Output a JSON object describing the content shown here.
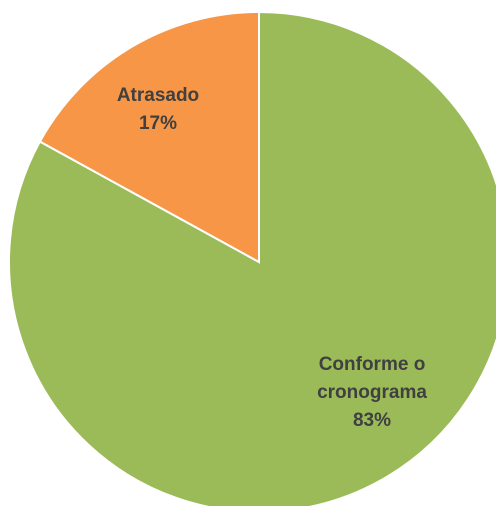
{
  "chart_data": {
    "type": "pie",
    "categories": [
      "Conforme o cronograma",
      "Atrasado"
    ],
    "values": [
      83,
      17
    ],
    "value_labels": [
      "83%",
      "17%"
    ],
    "colors": [
      "#9bbb59",
      "#f79646"
    ]
  }
}
